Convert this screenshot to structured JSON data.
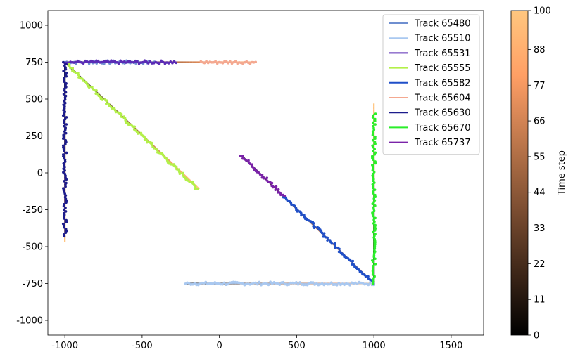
{
  "chart_data": {
    "type": "line",
    "title": "",
    "xlabel": "",
    "ylabel": "",
    "xlim": [
      -1110,
      1710
    ],
    "ylim": [
      -1100,
      1100
    ],
    "xticks": [
      -1000,
      -500,
      0,
      500,
      1000,
      1500
    ],
    "yticks": [
      -1000,
      -750,
      -500,
      -250,
      0,
      250,
      500,
      750,
      1000
    ],
    "grid": false,
    "legend_position": "top-right",
    "series": [
      {
        "name": "Track 65480",
        "color": "#6f8fd0",
        "points": [
          [
            -1000,
            750
          ],
          [
            -420,
            750
          ]
        ]
      },
      {
        "name": "Track 65510",
        "color": "#a9c8f0",
        "points": [
          [
            -220,
            -750
          ],
          [
            1000,
            -750
          ]
        ]
      },
      {
        "name": "Track 65531",
        "color": "#5a2bb5",
        "points": [
          [
            -1000,
            750
          ],
          [
            -280,
            750
          ]
        ]
      },
      {
        "name": "Track 65555",
        "color": "#b3f04a",
        "points": [
          [
            -980,
            730
          ],
          [
            -140,
            -110
          ]
        ]
      },
      {
        "name": "Track 65582",
        "color": "#1f4fc8",
        "points": [
          [
            420,
            -160
          ],
          [
            1000,
            -750
          ]
        ]
      },
      {
        "name": "Track 65604",
        "color": "#f4a890",
        "points": [
          [
            -120,
            750
          ],
          [
            235,
            750
          ]
        ]
      },
      {
        "name": "Track 65630",
        "color": "#1c1c8c",
        "points": [
          [
            -1000,
            750
          ],
          [
            -1000,
            -430
          ]
        ]
      },
      {
        "name": "Track 65670",
        "color": "#2aee2a",
        "points": [
          [
            1000,
            -750
          ],
          [
            1000,
            400
          ]
        ]
      },
      {
        "name": "Track 65737",
        "color": "#7a23a8",
        "points": [
          [
            140,
            120
          ],
          [
            420,
            -160
          ]
        ]
      }
    ],
    "background_paths": [
      {
        "points": [
          [
            -1000,
            750
          ],
          [
            240,
            750
          ]
        ]
      },
      {
        "points": [
          [
            -1000,
            750
          ],
          [
            -1000,
            -470
          ]
        ]
      },
      {
        "points": [
          [
            -1000,
            750
          ],
          [
            -130,
            -110
          ]
        ]
      },
      {
        "points": [
          [
            140,
            120
          ],
          [
            1000,
            -750
          ]
        ]
      },
      {
        "points": [
          [
            -220,
            -750
          ],
          [
            1000,
            -750
          ]
        ]
      },
      {
        "points": [
          [
            1000,
            -750
          ],
          [
            1000,
            470
          ]
        ]
      }
    ],
    "colorbar": {
      "label": "Time step",
      "min": 0,
      "max": 100,
      "ticks": [
        0,
        11,
        22,
        33,
        44,
        55,
        66,
        77,
        88,
        100
      ],
      "colormap": "copper"
    }
  }
}
